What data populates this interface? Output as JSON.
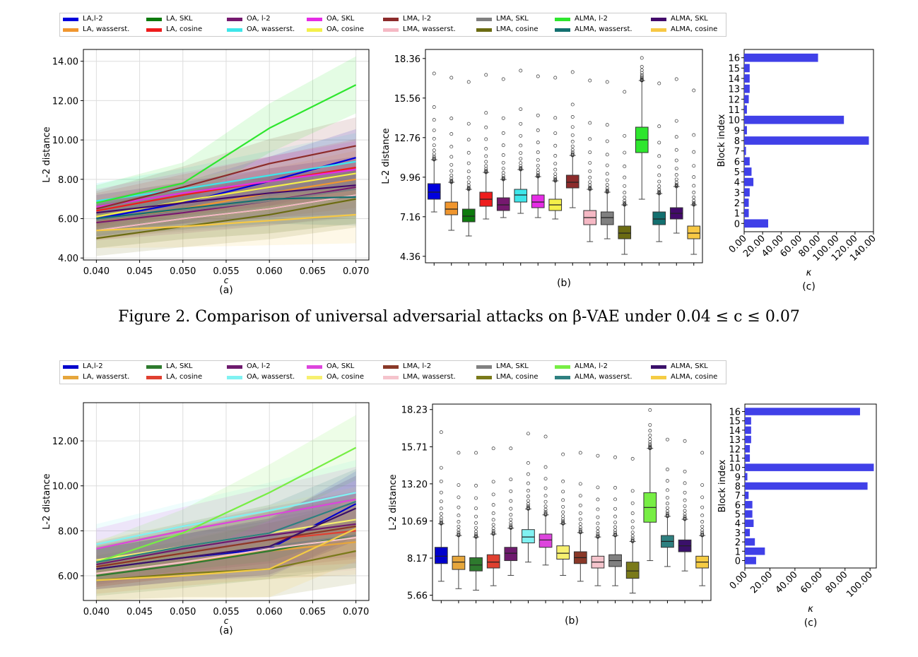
{
  "caption": {
    "text": "Figure 2. Comparison of universal adversarial attacks on β-VAE under 0.04 ≤ c ≤ 0.07"
  },
  "figures": [
    {
      "legend": [
        {
          "name": "LA,l-2",
          "color": "#0000dd"
        },
        {
          "name": "LA, wasserst.",
          "color": "#f0962e"
        },
        {
          "name": "LA, SKL",
          "color": "#0d7a0d"
        },
        {
          "name": "LA, cosine",
          "color": "#ee1c1c"
        },
        {
          "name": "OA, l-2",
          "color": "#76196f"
        },
        {
          "name": "OA, wasserst.",
          "color": "#3ee6ea"
        },
        {
          "name": "OA, SKL",
          "color": "#e52ce5"
        },
        {
          "name": "OA, cosine",
          "color": "#f4f04a"
        },
        {
          "name": "LMA, l-2",
          "color": "#8c2b2b"
        },
        {
          "name": "LMA, wasserst.",
          "color": "#f5b8c4"
        },
        {
          "name": "LMA, SKL",
          "color": "#808080"
        },
        {
          "name": "LMA, cosine",
          "color": "#6b6b12"
        },
        {
          "name": "ALMA, l-2",
          "color": "#2ee62e"
        },
        {
          "name": "ALMA, wasserst.",
          "color": "#137070"
        },
        {
          "name": "ALMA, SKL",
          "color": "#430a6b"
        },
        {
          "name": "ALMA, cosine",
          "color": "#f7c844"
        }
      ],
      "panels": {
        "a": {
          "label": "(a)"
        },
        "b": {
          "label": "(b)"
        },
        "c": {
          "label": "(c)"
        }
      }
    },
    {
      "legend": [
        {
          "name": "LA,l-2",
          "color": "#0000cc"
        },
        {
          "name": "LA, wasserst.",
          "color": "#e6a63c"
        },
        {
          "name": "LA, SKL",
          "color": "#2e7a2e"
        },
        {
          "name": "LA, cosine",
          "color": "#e04030"
        },
        {
          "name": "OA, l-2",
          "color": "#6e1a6e"
        },
        {
          "name": "OA, wasserst.",
          "color": "#80f2f2"
        },
        {
          "name": "OA, SKL",
          "color": "#dd44dd"
        },
        {
          "name": "OA, cosine",
          "color": "#f7f070"
        },
        {
          "name": "LMA, l-2",
          "color": "#8a3828"
        },
        {
          "name": "LMA, wasserst.",
          "color": "#f5c4cc"
        },
        {
          "name": "LMA, SKL",
          "color": "#808080"
        },
        {
          "name": "LMA, cosine",
          "color": "#7a7a1a"
        },
        {
          "name": "ALMA, l-2",
          "color": "#77ee44"
        },
        {
          "name": "ALMA, wasserst.",
          "color": "#2e8080"
        },
        {
          "name": "ALMA, SKL",
          "color": "#3a106a"
        },
        {
          "name": "ALMA, cosine",
          "color": "#f5cc44"
        }
      ],
      "panels": {
        "a": {
          "label": "(a)"
        },
        "b": {
          "label": "(b)"
        },
        "c": {
          "label": "(c)"
        }
      }
    }
  ],
  "chart_data": [
    {
      "type": "line",
      "figure": 1,
      "panel": "a",
      "xlabel": "c",
      "ylabel": "L-2 distance",
      "x": [
        0.04,
        0.05,
        0.06,
        0.07
      ],
      "xticks": [
        "0.040",
        "0.045",
        "0.050",
        "0.055",
        "0.060",
        "0.065",
        "0.070"
      ],
      "xlim": [
        0.0385,
        0.0715
      ],
      "ylim": [
        3.9,
        14.6
      ],
      "yticks": [
        "4.00",
        "6.00",
        "8.00",
        "10.00",
        "12.00",
        "14.00"
      ],
      "grid": true,
      "series": [
        {
          "name": "LA,l-2",
          "values": [
            6.0,
            6.8,
            7.9,
            9.1
          ]
        },
        {
          "name": "LA, wasserst.",
          "values": [
            5.8,
            6.5,
            7.3,
            8.0
          ]
        },
        {
          "name": "LA, SKL",
          "values": [
            5.4,
            6.0,
            6.5,
            7.2
          ]
        },
        {
          "name": "LA, cosine",
          "values": [
            6.4,
            7.2,
            7.9,
            8.6
          ]
        },
        {
          "name": "OA, l-2",
          "values": [
            5.8,
            6.3,
            6.9,
            7.6
          ]
        },
        {
          "name": "OA, wasserst.",
          "values": [
            6.9,
            7.5,
            8.2,
            8.9
          ]
        },
        {
          "name": "OA, SKL",
          "values": [
            6.6,
            7.3,
            7.9,
            8.5
          ]
        },
        {
          "name": "OA, cosine",
          "values": [
            6.1,
            6.9,
            7.6,
            8.3
          ]
        },
        {
          "name": "LMA, l-2",
          "values": [
            6.5,
            7.6,
            8.8,
            9.7
          ]
        },
        {
          "name": "LMA, wasserst.",
          "values": [
            5.4,
            6.0,
            6.5,
            7.2
          ]
        },
        {
          "name": "LMA, SKL",
          "values": [
            5.9,
            6.4,
            6.9,
            7.5
          ]
        },
        {
          "name": "LMA, cosine",
          "values": [
            5.0,
            5.6,
            6.2,
            7.0
          ]
        },
        {
          "name": "ALMA, l-2",
          "values": [
            6.8,
            7.8,
            10.6,
            12.8
          ]
        },
        {
          "name": "ALMA, wasserst.",
          "values": [
            6.0,
            6.5,
            7.0,
            7.1
          ]
        },
        {
          "name": "ALMA, SKL",
          "values": [
            6.3,
            6.8,
            7.3,
            7.7
          ]
        },
        {
          "name": "ALMA, cosine",
          "values": [
            5.4,
            5.6,
            5.9,
            6.2
          ]
        }
      ]
    },
    {
      "type": "box",
      "figure": 1,
      "panel": "b",
      "ylabel": "L-2 distance",
      "ylim": [
        3.9,
        19.0
      ],
      "yticks": [
        "4.36",
        "7.16",
        "9.96",
        "12.76",
        "15.56",
        "18.36"
      ],
      "boxes": [
        {
          "name": "LA,l-2",
          "q1": 8.4,
          "median": 8.9,
          "q3": 9.5,
          "whislo": 7.5,
          "whishi": 11.2,
          "max": 17.3
        },
        {
          "name": "LA, wasserst.",
          "q1": 7.3,
          "median": 7.7,
          "q3": 8.2,
          "whislo": 6.2,
          "whishi": 9.6,
          "max": 17.0
        },
        {
          "name": "LA, SKL",
          "q1": 6.8,
          "median": 7.2,
          "q3": 7.7,
          "whislo": 5.8,
          "whishi": 9.1,
          "max": 16.7
        },
        {
          "name": "LA, cosine",
          "q1": 7.9,
          "median": 8.4,
          "q3": 8.9,
          "whislo": 7.0,
          "whishi": 10.3,
          "max": 17.2
        },
        {
          "name": "OA, l-2",
          "q1": 7.6,
          "median": 8.0,
          "q3": 8.5,
          "whislo": 7.1,
          "whishi": 9.8,
          "max": 16.9
        },
        {
          "name": "OA, wasserst.",
          "q1": 8.2,
          "median": 8.7,
          "q3": 9.1,
          "whislo": 7.4,
          "whishi": 10.5,
          "max": 17.5
        },
        {
          "name": "OA, SKL",
          "q1": 7.8,
          "median": 8.2,
          "q3": 8.7,
          "whislo": 7.1,
          "whishi": 10.0,
          "max": 17.1
        },
        {
          "name": "OA, cosine",
          "q1": 7.6,
          "median": 8.0,
          "q3": 8.4,
          "whislo": 7.0,
          "whishi": 9.7,
          "max": 17.0
        },
        {
          "name": "LMA, l-2",
          "q1": 9.2,
          "median": 9.6,
          "q3": 10.1,
          "whislo": 7.8,
          "whishi": 11.5,
          "max": 17.4
        },
        {
          "name": "LMA, wasserst.",
          "q1": 6.6,
          "median": 7.1,
          "q3": 7.6,
          "whislo": 5.4,
          "whishi": 9.1,
          "max": 16.8
        },
        {
          "name": "LMA, SKL",
          "q1": 6.6,
          "median": 7.1,
          "q3": 7.5,
          "whislo": 5.6,
          "whishi": 8.9,
          "max": 16.7
        },
        {
          "name": "LMA, cosine",
          "q1": 5.6,
          "median": 6.0,
          "q3": 6.5,
          "whislo": 4.5,
          "whishi": 8.0,
          "max": 16.0
        },
        {
          "name": "ALMA, l-2",
          "q1": 11.7,
          "median": 12.6,
          "q3": 13.5,
          "whislo": 8.4,
          "whishi": 16.8,
          "max": 18.4
        },
        {
          "name": "ALMA, wasserst.",
          "q1": 6.6,
          "median": 7.0,
          "q3": 7.5,
          "whislo": 5.4,
          "whishi": 8.8,
          "max": 16.6
        },
        {
          "name": "ALMA, SKL",
          "q1": 7.0,
          "median": 7.4,
          "q3": 7.8,
          "whislo": 6.0,
          "whishi": 9.3,
          "max": 16.9
        },
        {
          "name": "ALMA, cosine",
          "q1": 5.6,
          "median": 6.0,
          "q3": 6.5,
          "whislo": 4.5,
          "whishi": 8.0,
          "max": 16.1
        }
      ]
    },
    {
      "type": "bar",
      "orientation": "horizontal",
      "figure": 1,
      "panel": "c",
      "xlabel": "κ",
      "ylabel": "Block index",
      "categories": [
        "0",
        "1",
        "2",
        "3",
        "4",
        "5",
        "6",
        "7",
        "8",
        "9",
        "10",
        "11",
        "12",
        "13",
        "14",
        "15",
        "16"
      ],
      "values": [
        26,
        5,
        5,
        6,
        10,
        8,
        6,
        2,
        135,
        3,
        108,
        3,
        5,
        6,
        6,
        6,
        80
      ],
      "xlim": [
        0,
        140
      ],
      "xticks": [
        "0.00",
        "20.00",
        "40.00",
        "60.00",
        "80.00",
        "100.00",
        "120.00",
        "140.00"
      ],
      "color": "#4040e8"
    },
    {
      "type": "line",
      "figure": 2,
      "panel": "a",
      "xlabel": "c",
      "ylabel": "L-2 distance",
      "x": [
        0.04,
        0.05,
        0.06,
        0.07
      ],
      "xticks": [
        "0.040",
        "0.045",
        "0.050",
        "0.055",
        "0.060",
        "0.065",
        "0.070"
      ],
      "xlim": [
        0.0385,
        0.0715
      ],
      "ylim": [
        4.9,
        13.7
      ],
      "yticks": [
        "6.00",
        "8.00",
        "10.00",
        "12.00"
      ],
      "grid": true,
      "series": [
        {
          "name": "LA,l-2",
          "values": [
            6.3,
            6.8,
            7.2,
            9.2
          ]
        },
        {
          "name": "LA, wasserst.",
          "values": [
            6.1,
            6.6,
            7.1,
            7.5
          ]
        },
        {
          "name": "LA, SKL",
          "values": [
            6.0,
            6.5,
            7.1,
            7.8
          ]
        },
        {
          "name": "LA, cosine",
          "values": [
            6.4,
            7.0,
            7.6,
            8.0
          ]
        },
        {
          "name": "OA, l-2",
          "values": [
            6.5,
            7.2,
            7.8,
            8.3
          ]
        },
        {
          "name": "OA, wasserst.",
          "values": [
            7.4,
            8.2,
            8.9,
            9.7
          ]
        },
        {
          "name": "OA, SKL",
          "values": [
            7.2,
            8.0,
            8.7,
            9.4
          ]
        },
        {
          "name": "OA, cosine",
          "values": [
            6.7,
            7.3,
            7.9,
            8.5
          ]
        },
        {
          "name": "LMA, l-2",
          "values": [
            6.4,
            7.0,
            7.6,
            8.2
          ]
        },
        {
          "name": "LMA, wasserst.",
          "values": [
            6.1,
            6.6,
            7.2,
            7.7
          ]
        },
        {
          "name": "LMA, SKL",
          "values": [
            6.3,
            6.8,
            7.3,
            7.8
          ]
        },
        {
          "name": "LMA, cosine",
          "values": [
            5.8,
            6.1,
            6.3,
            7.1
          ]
        },
        {
          "name": "ALMA, l-2",
          "values": [
            6.6,
            7.9,
            9.7,
            11.7
          ]
        },
        {
          "name": "ALMA, wasserst.",
          "values": [
            6.6,
            7.3,
            7.9,
            9.3
          ]
        },
        {
          "name": "ALMA, SKL",
          "values": [
            6.3,
            6.8,
            7.3,
            9.0
          ]
        },
        {
          "name": "ALMA, cosine",
          "values": [
            5.8,
            6.0,
            6.3,
            8.1
          ]
        }
      ]
    },
    {
      "type": "box",
      "figure": 2,
      "panel": "b",
      "ylabel": "L-2 distance",
      "ylim": [
        5.3,
        18.6
      ],
      "yticks": [
        "5.66",
        "8.17",
        "10.69",
        "13.20",
        "15.71",
        "18.23"
      ],
      "boxes": [
        {
          "name": "LA,l-2",
          "q1": 7.8,
          "median": 8.3,
          "q3": 8.9,
          "whislo": 6.6,
          "whishi": 10.5,
          "max": 16.7
        },
        {
          "name": "LA, wasserst.",
          "q1": 7.4,
          "median": 7.9,
          "q3": 8.3,
          "whislo": 6.1,
          "whishi": 9.7,
          "max": 15.3
        },
        {
          "name": "LA, SKL",
          "q1": 7.3,
          "median": 7.7,
          "q3": 8.2,
          "whislo": 6.0,
          "whishi": 9.6,
          "max": 15.3
        },
        {
          "name": "LA, cosine",
          "q1": 7.5,
          "median": 7.9,
          "q3": 8.4,
          "whislo": 6.3,
          "whishi": 9.8,
          "max": 15.6
        },
        {
          "name": "OA, l-2",
          "q1": 8.0,
          "median": 8.5,
          "q3": 8.9,
          "whislo": 7.0,
          "whishi": 10.2,
          "max": 15.6
        },
        {
          "name": "OA, wasserst.",
          "q1": 9.2,
          "median": 9.6,
          "q3": 10.1,
          "whislo": 7.9,
          "whishi": 11.5,
          "max": 16.6
        },
        {
          "name": "OA, SKL",
          "q1": 8.9,
          "median": 9.4,
          "q3": 9.8,
          "whislo": 7.7,
          "whishi": 11.1,
          "max": 16.4
        },
        {
          "name": "OA, cosine",
          "q1": 8.1,
          "median": 8.5,
          "q3": 9.0,
          "whislo": 7.0,
          "whishi": 10.5,
          "max": 15.2
        },
        {
          "name": "LMA, l-2",
          "q1": 7.8,
          "median": 8.2,
          "q3": 8.6,
          "whislo": 6.6,
          "whishi": 9.9,
          "max": 15.3
        },
        {
          "name": "LMA, wasserst.",
          "q1": 7.5,
          "median": 7.9,
          "q3": 8.3,
          "whislo": 6.3,
          "whishi": 9.6,
          "max": 15.1
        },
        {
          "name": "LMA, SKL",
          "q1": 7.6,
          "median": 8.0,
          "q3": 8.4,
          "whislo": 6.3,
          "whishi": 9.7,
          "max": 15.0
        },
        {
          "name": "LMA, cosine",
          "q1": 6.8,
          "median": 7.3,
          "q3": 7.9,
          "whislo": 5.8,
          "whishi": 9.3,
          "max": 14.9
        },
        {
          "name": "ALMA, l-2",
          "q1": 10.6,
          "median": 11.6,
          "q3": 12.6,
          "whislo": 8.0,
          "whishi": 15.6,
          "max": 18.2
        },
        {
          "name": "ALMA, wasserst.",
          "q1": 8.9,
          "median": 9.3,
          "q3": 9.7,
          "whislo": 7.6,
          "whishi": 11.0,
          "max": 16.2
        },
        {
          "name": "ALMA, SKL",
          "q1": 8.6,
          "median": 9.0,
          "q3": 9.4,
          "whislo": 7.3,
          "whishi": 10.8,
          "max": 16.1
        },
        {
          "name": "ALMA, cosine",
          "q1": 7.5,
          "median": 7.9,
          "q3": 8.3,
          "whislo": 6.3,
          "whishi": 9.7,
          "max": 15.3
        }
      ]
    },
    {
      "type": "bar",
      "orientation": "horizontal",
      "figure": 2,
      "panel": "c",
      "xlabel": "κ",
      "ylabel": "Block index",
      "categories": [
        "0",
        "1",
        "2",
        "3",
        "4",
        "5",
        "6",
        "7",
        "8",
        "9",
        "10",
        "11",
        "12",
        "13",
        "14",
        "15",
        "16"
      ],
      "values": [
        9,
        16,
        8,
        4,
        7,
        6,
        6,
        3,
        98,
        2,
        103,
        4,
        4,
        5,
        5,
        5,
        92
      ],
      "xlim": [
        0,
        105
      ],
      "xticks": [
        "0.00",
        "20.00",
        "40.00",
        "60.00",
        "80.00",
        "100.00"
      ],
      "color": "#4040e8"
    }
  ]
}
